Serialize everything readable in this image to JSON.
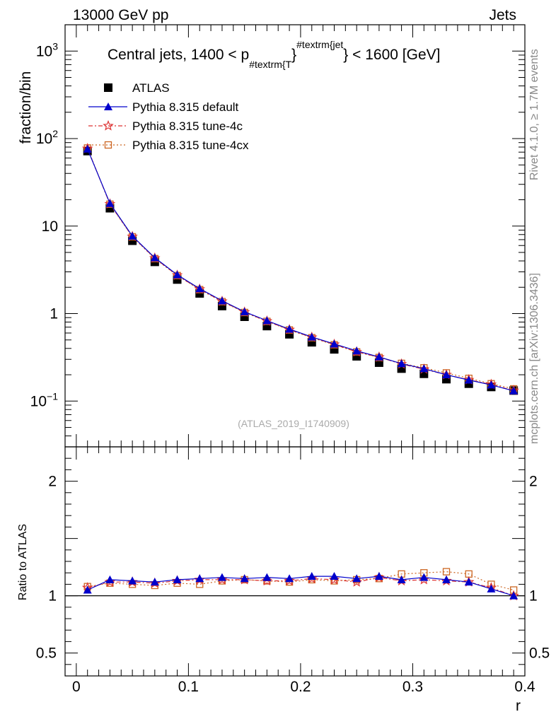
{
  "header": {
    "left": "13000 GeV pp",
    "right": "Jets"
  },
  "side": {
    "rivet": "Rivet 4.1.0, ≥ 1.7M events",
    "mcplots": "mcplots.cern.ch [arXiv:1306.3436]"
  },
  "watermark": "(ATLAS_2019_I1740909)",
  "chart_data": [
    {
      "type": "scatter",
      "panel": "main",
      "title": "Central jets, 1400 < p#textrm{T}#textrm{jet} < 1600 [GeV]",
      "title_parts": {
        "pre": "Central jets, 1400 < p",
        "sub": "#textrm{T",
        "sup": "#textrm{jet",
        "post": "} < 1600 [GeV]",
        "mid": "}"
      },
      "ylabel": "fraction/bin",
      "xlabel": "r",
      "yscale": "log",
      "ylim": [
        0.03,
        2000
      ],
      "xlim": [
        -0.01,
        0.4
      ],
      "y_ticks": [
        {
          "value": 1000,
          "base": "10",
          "exp": "3"
        },
        {
          "value": 100,
          "base": "10",
          "exp": "2"
        },
        {
          "value": 10,
          "base": "10",
          "exp": ""
        },
        {
          "value": 1,
          "base": "1",
          "exp": ""
        },
        {
          "value": 0.1,
          "base": "10",
          "exp": "−1"
        }
      ],
      "x": [
        0.01,
        0.03,
        0.05,
        0.07,
        0.09,
        0.11,
        0.13,
        0.15,
        0.17,
        0.19,
        0.21,
        0.23,
        0.25,
        0.27,
        0.29,
        0.31,
        0.33,
        0.35,
        0.37,
        0.39
      ],
      "series": [
        {
          "name": "ATLAS",
          "color": "#000000",
          "marker": "square",
          "values": [
            72,
            16,
            6.8,
            3.9,
            2.45,
            1.7,
            1.22,
            0.92,
            0.72,
            0.58,
            0.47,
            0.39,
            0.325,
            0.275,
            0.235,
            0.205,
            0.178,
            0.158,
            0.145,
            0.132
          ]
        },
        {
          "name": "Pythia 8.315 default",
          "color": "#0000cc",
          "marker": "triangle",
          "values": [
            76,
            18.2,
            7.7,
            4.35,
            2.78,
            1.93,
            1.4,
            1.05,
            0.83,
            0.665,
            0.54,
            0.45,
            0.375,
            0.32,
            0.268,
            0.235,
            0.2,
            0.174,
            0.153,
            0.131
          ]
        },
        {
          "name": "Pythia 8.315 tune-4c",
          "color": "#dd3333",
          "marker": "star",
          "values": [
            77,
            17.9,
            7.6,
            4.3,
            2.74,
            1.9,
            1.38,
            1.04,
            0.82,
            0.655,
            0.535,
            0.445,
            0.365,
            0.318,
            0.265,
            0.232,
            0.2,
            0.175,
            0.155,
            0.132
          ]
        },
        {
          "name": "Pythia 8.315 tune-4cx",
          "color": "#cc6622",
          "marker": "open-square",
          "values": [
            78,
            17.8,
            7.55,
            4.25,
            2.72,
            1.88,
            1.37,
            1.03,
            0.815,
            0.65,
            0.53,
            0.44,
            0.365,
            0.315,
            0.27,
            0.24,
            0.21,
            0.182,
            0.158,
            0.138
          ]
        }
      ]
    },
    {
      "type": "scatter",
      "panel": "ratio",
      "ylabel": "Ratio to ATLAS",
      "xlabel": "r",
      "ylim": [
        0.3,
        2.3
      ],
      "xlim": [
        -0.01,
        0.4
      ],
      "y_ticks": [
        {
          "value": 2,
          "label": "2"
        },
        {
          "value": 1,
          "label": "1"
        },
        {
          "value": 0.5,
          "label": "0.5"
        }
      ],
      "x_ticks": [
        {
          "value": 0,
          "label": "0"
        },
        {
          "value": 0.1,
          "label": "0.1"
        },
        {
          "value": 0.2,
          "label": "0.2"
        },
        {
          "value": 0.3,
          "label": "0.3"
        },
        {
          "value": 0.4,
          "label": "0.4"
        }
      ],
      "x": [
        0.01,
        0.03,
        0.05,
        0.07,
        0.09,
        0.11,
        0.13,
        0.15,
        0.17,
        0.19,
        0.21,
        0.23,
        0.25,
        0.27,
        0.29,
        0.31,
        0.33,
        0.35,
        0.37,
        0.39
      ],
      "series": [
        {
          "name": "Pythia 8.315 default",
          "color": "#0000cc",
          "marker": "triangle",
          "values": [
            1.05,
            1.14,
            1.13,
            1.12,
            1.14,
            1.15,
            1.16,
            1.15,
            1.16,
            1.15,
            1.17,
            1.17,
            1.15,
            1.17,
            1.14,
            1.16,
            1.14,
            1.12,
            1.06,
            1.0
          ]
        },
        {
          "name": "Pythia 8.315 tune-4c",
          "color": "#dd3333",
          "marker": "star",
          "values": [
            1.07,
            1.12,
            1.12,
            1.11,
            1.13,
            1.14,
            1.14,
            1.14,
            1.13,
            1.13,
            1.15,
            1.14,
            1.12,
            1.16,
            1.13,
            1.14,
            1.13,
            1.12,
            1.07,
            1.0
          ]
        },
        {
          "name": "Pythia 8.315 tune-4cx",
          "color": "#cc6622",
          "marker": "open-square",
          "values": [
            1.08,
            1.11,
            1.1,
            1.09,
            1.11,
            1.1,
            1.13,
            1.14,
            1.13,
            1.12,
            1.14,
            1.13,
            1.14,
            1.15,
            1.19,
            1.2,
            1.21,
            1.19,
            1.1,
            1.05
          ]
        }
      ]
    }
  ]
}
